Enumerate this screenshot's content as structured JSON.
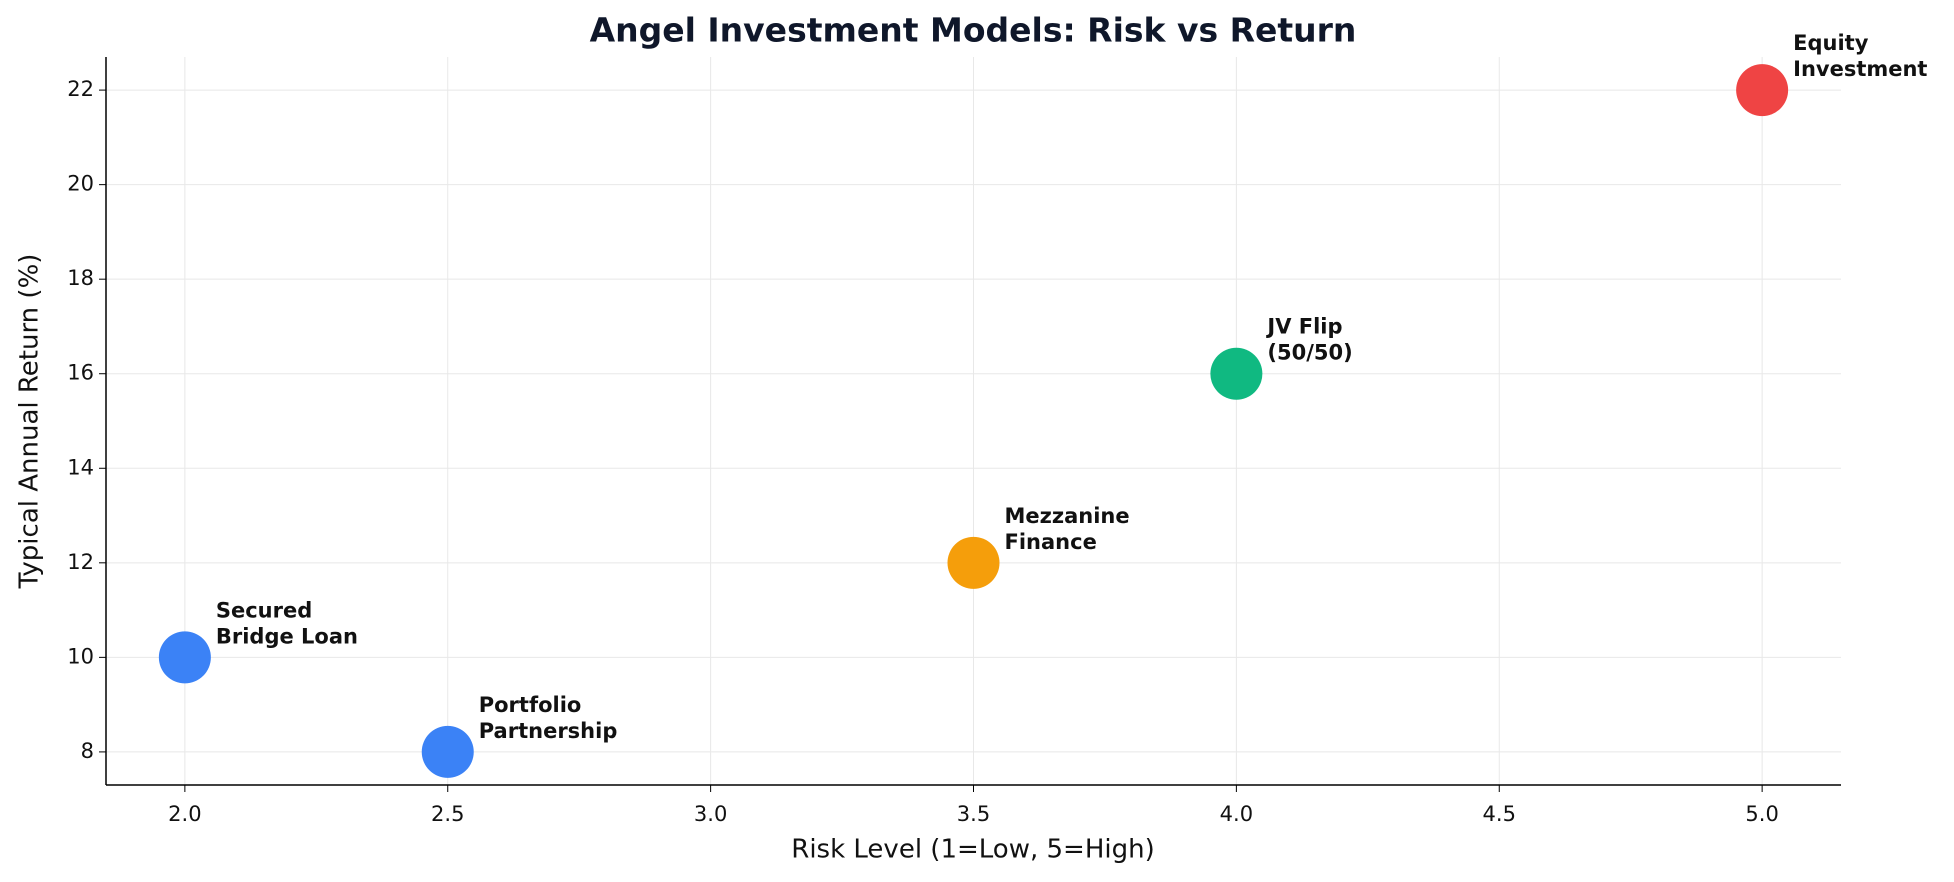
{
  "chart_data": {
    "type": "scatter",
    "title": "Angel Investment Models: Risk vs Return",
    "xlabel": "Risk Level (1=Low, 5=High)",
    "ylabel": "Typical Annual Return (%)",
    "x": [
      2.0,
      2.5,
      3.5,
      4.0,
      5.0
    ],
    "values": [
      10,
      8,
      12,
      16,
      22
    ],
    "labels": [
      "Secured\nBridge Loan",
      "Portfolio\nPartnership",
      "Mezzanine\nFinance",
      "JV Flip\n(50/50)",
      "Equity\nInvestment"
    ],
    "colors": [
      "#3b82f6",
      "#3b82f6",
      "#f59e0b",
      "#10b981",
      "#ef4444"
    ],
    "xlim": [
      1.85,
      5.15
    ],
    "ylim": [
      7.3,
      22.7
    ],
    "xticks": [
      {
        "value": 2,
        "label": "2.0"
      },
      {
        "value": 2.5,
        "label": "2.5"
      },
      {
        "value": 3,
        "label": "3.0"
      },
      {
        "value": 3.5,
        "label": "3.5"
      },
      {
        "value": 4,
        "label": "4.0"
      },
      {
        "value": 4.5,
        "label": "4.5"
      },
      {
        "value": 5,
        "label": "5.0"
      }
    ],
    "yticks": [
      8,
      10,
      12,
      14,
      16,
      18,
      20,
      22
    ],
    "grid": true
  }
}
